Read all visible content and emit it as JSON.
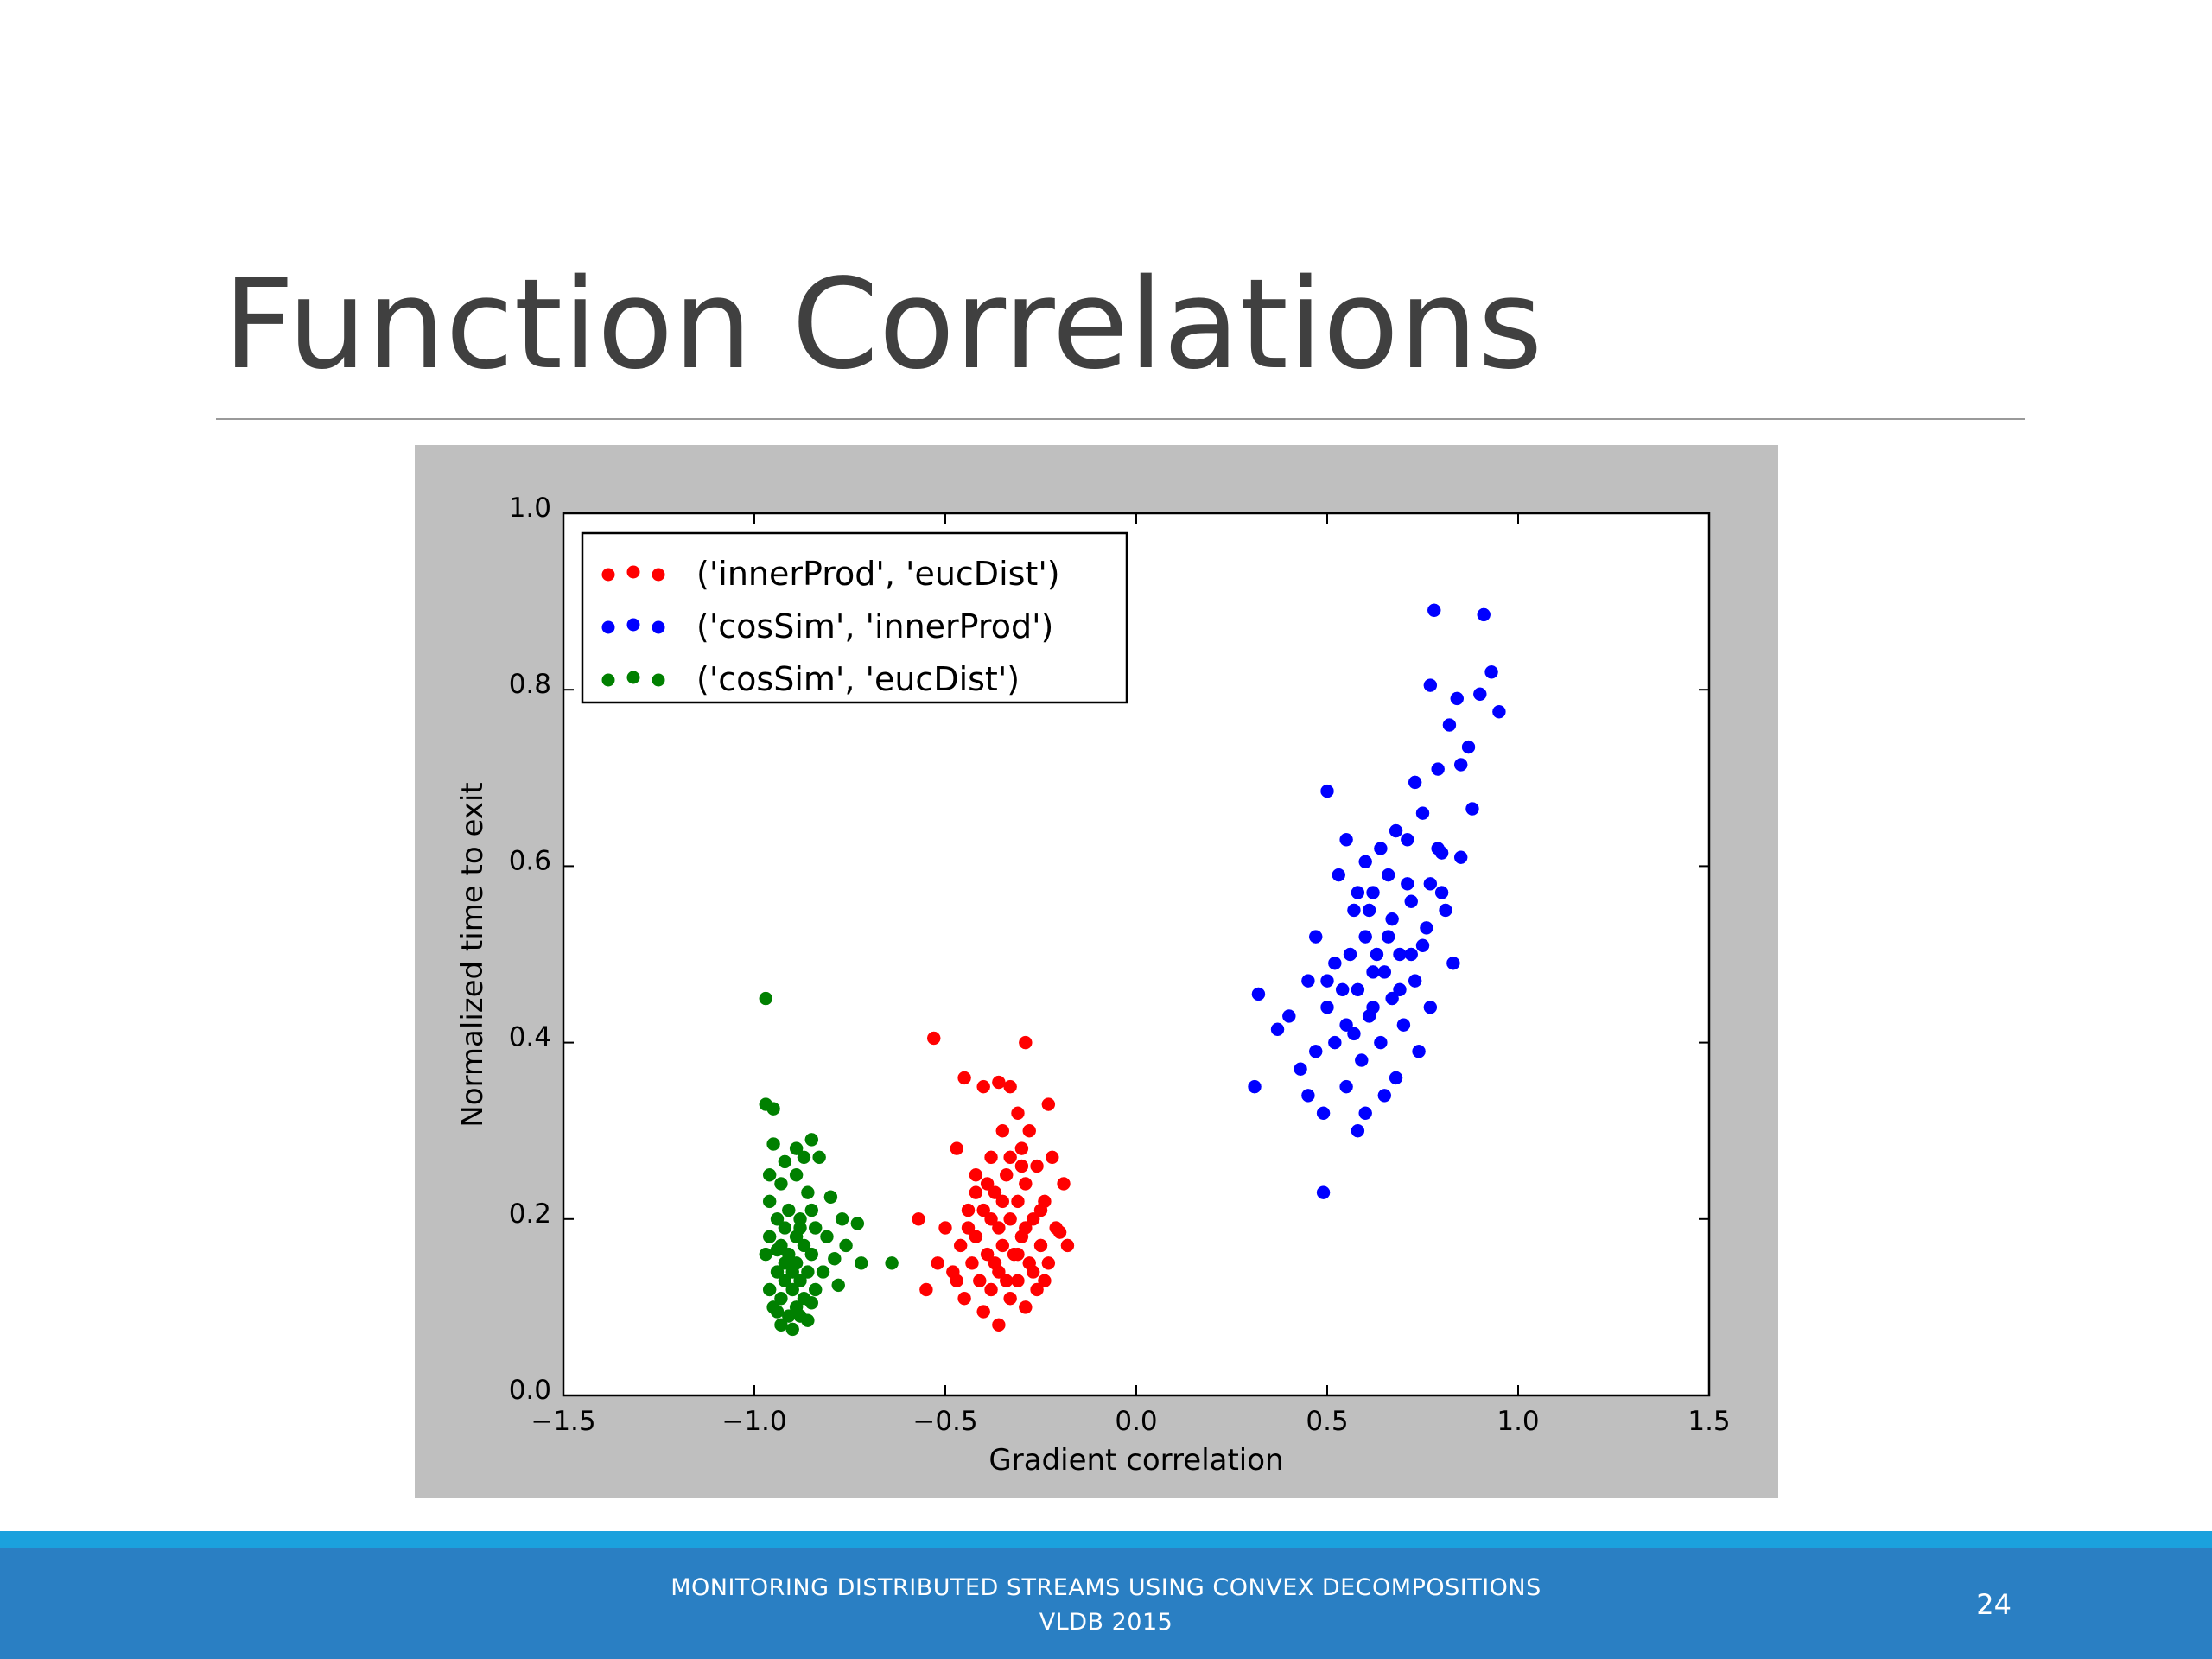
{
  "slide": {
    "title": "Function Correlations",
    "footer_line1": "MONITORING DISTRIBUTED STREAMS USING CONVEX DECOMPOSITIONS",
    "footer_line2": "VLDB 2015",
    "page_number": "24"
  },
  "chart_data": {
    "type": "scatter",
    "title": "",
    "xlabel": "Gradient correlation",
    "ylabel": "Normalized time to exit",
    "xlim": [
      -1.5,
      1.5
    ],
    "ylim": [
      0.0,
      1.0
    ],
    "xticks": [
      "−1.5",
      "−1.0",
      "−0.5",
      "0.0",
      "0.5",
      "1.0",
      "1.5"
    ],
    "yticks": [
      "0.0",
      "0.2",
      "0.4",
      "0.6",
      "0.8",
      "1.0"
    ],
    "grid": false,
    "legend_position": "top-left",
    "series": [
      {
        "name": "('innerProd', 'eucDist')",
        "color": "#ff0000",
        "points": [
          [
            -0.53,
            0.405
          ],
          [
            -0.29,
            0.4
          ],
          [
            -0.36,
            0.355
          ],
          [
            -0.4,
            0.35
          ],
          [
            -0.45,
            0.36
          ],
          [
            -0.33,
            0.35
          ],
          [
            -0.31,
            0.32
          ],
          [
            -0.23,
            0.33
          ],
          [
            -0.28,
            0.3
          ],
          [
            -0.35,
            0.3
          ],
          [
            -0.3,
            0.28
          ],
          [
            -0.22,
            0.27
          ],
          [
            -0.47,
            0.28
          ],
          [
            -0.38,
            0.27
          ],
          [
            -0.26,
            0.26
          ],
          [
            -0.42,
            0.25
          ],
          [
            -0.34,
            0.25
          ],
          [
            -0.19,
            0.24
          ],
          [
            -0.29,
            0.24
          ],
          [
            -0.37,
            0.23
          ],
          [
            -0.24,
            0.22
          ],
          [
            -0.31,
            0.22
          ],
          [
            -0.44,
            0.21
          ],
          [
            -0.4,
            0.21
          ],
          [
            -0.33,
            0.2
          ],
          [
            -0.27,
            0.2
          ],
          [
            -0.21,
            0.19
          ],
          [
            -0.36,
            0.19
          ],
          [
            -0.5,
            0.19
          ],
          [
            -0.3,
            0.18
          ],
          [
            -0.42,
            0.18
          ],
          [
            -0.25,
            0.17
          ],
          [
            -0.35,
            0.17
          ],
          [
            -0.2,
            0.185
          ],
          [
            -0.46,
            0.17
          ],
          [
            -0.32,
            0.16
          ],
          [
            -0.39,
            0.16
          ],
          [
            -0.28,
            0.15
          ],
          [
            -0.43,
            0.15
          ],
          [
            -0.23,
            0.15
          ],
          [
            -0.36,
            0.14
          ],
          [
            -0.48,
            0.14
          ],
          [
            -0.31,
            0.13
          ],
          [
            -0.41,
            0.13
          ],
          [
            -0.26,
            0.12
          ],
          [
            -0.55,
            0.12
          ],
          [
            -0.38,
            0.12
          ],
          [
            -0.45,
            0.11
          ],
          [
            -0.33,
            0.11
          ],
          [
            -0.29,
            0.1
          ],
          [
            -0.4,
            0.095
          ],
          [
            -0.36,
            0.08
          ],
          [
            -0.52,
            0.15
          ],
          [
            -0.57,
            0.2
          ],
          [
            -0.24,
            0.13
          ],
          [
            -0.18,
            0.17
          ],
          [
            -0.35,
            0.22
          ],
          [
            -0.39,
            0.24
          ],
          [
            -0.3,
            0.26
          ],
          [
            -0.27,
            0.14
          ],
          [
            -0.44,
            0.19
          ],
          [
            -0.34,
            0.13
          ],
          [
            -0.38,
            0.2
          ],
          [
            -0.31,
            0.16
          ],
          [
            -0.42,
            0.23
          ],
          [
            -0.25,
            0.21
          ],
          [
            -0.47,
            0.13
          ],
          [
            -0.33,
            0.27
          ],
          [
            -0.37,
            0.15
          ],
          [
            -0.29,
            0.19
          ]
        ]
      },
      {
        "name": "('cosSim', 'innerProd')",
        "color": "#0000ff",
        "points": [
          [
            0.78,
            0.89
          ],
          [
            0.91,
            0.885
          ],
          [
            0.93,
            0.82
          ],
          [
            0.77,
            0.805
          ],
          [
            0.84,
            0.79
          ],
          [
            0.9,
            0.795
          ],
          [
            0.95,
            0.775
          ],
          [
            0.82,
            0.76
          ],
          [
            0.87,
            0.735
          ],
          [
            0.79,
            0.71
          ],
          [
            0.73,
            0.695
          ],
          [
            0.85,
            0.715
          ],
          [
            0.5,
            0.685
          ],
          [
            0.75,
            0.66
          ],
          [
            0.88,
            0.665
          ],
          [
            0.68,
            0.64
          ],
          [
            0.71,
            0.63
          ],
          [
            0.55,
            0.63
          ],
          [
            0.64,
            0.62
          ],
          [
            0.8,
            0.615
          ],
          [
            0.6,
            0.605
          ],
          [
            0.85,
            0.61
          ],
          [
            0.66,
            0.59
          ],
          [
            0.53,
            0.59
          ],
          [
            0.77,
            0.58
          ],
          [
            0.62,
            0.57
          ],
          [
            0.72,
            0.56
          ],
          [
            0.57,
            0.55
          ],
          [
            0.81,
            0.55
          ],
          [
            0.67,
            0.54
          ],
          [
            0.47,
            0.52
          ],
          [
            0.6,
            0.52
          ],
          [
            0.75,
            0.51
          ],
          [
            0.56,
            0.5
          ],
          [
            0.69,
            0.5
          ],
          [
            0.52,
            0.49
          ],
          [
            0.83,
            0.49
          ],
          [
            0.62,
            0.48
          ],
          [
            0.45,
            0.47
          ],
          [
            0.73,
            0.47
          ],
          [
            0.58,
            0.46
          ],
          [
            0.67,
            0.45
          ],
          [
            0.32,
            0.455
          ],
          [
            0.5,
            0.44
          ],
          [
            0.77,
            0.44
          ],
          [
            0.61,
            0.43
          ],
          [
            0.4,
            0.43
          ],
          [
            0.55,
            0.42
          ],
          [
            0.7,
            0.42
          ],
          [
            0.37,
            0.415
          ],
          [
            0.64,
            0.4
          ],
          [
            0.52,
            0.4
          ],
          [
            0.47,
            0.39
          ],
          [
            0.74,
            0.39
          ],
          [
            0.59,
            0.38
          ],
          [
            0.43,
            0.37
          ],
          [
            0.68,
            0.36
          ],
          [
            0.55,
            0.35
          ],
          [
            0.31,
            0.35
          ],
          [
            0.65,
            0.34
          ],
          [
            0.45,
            0.34
          ],
          [
            0.6,
            0.32
          ],
          [
            0.49,
            0.32
          ],
          [
            0.58,
            0.3
          ],
          [
            0.49,
            0.23
          ],
          [
            0.66,
            0.52
          ],
          [
            0.71,
            0.58
          ],
          [
            0.63,
            0.5
          ],
          [
            0.58,
            0.57
          ],
          [
            0.79,
            0.62
          ],
          [
            0.54,
            0.46
          ],
          [
            0.69,
            0.46
          ],
          [
            0.61,
            0.55
          ],
          [
            0.76,
            0.53
          ],
          [
            0.57,
            0.41
          ],
          [
            0.65,
            0.48
          ],
          [
            0.72,
            0.5
          ],
          [
            0.5,
            0.47
          ],
          [
            0.62,
            0.44
          ],
          [
            0.8,
            0.57
          ]
        ]
      },
      {
        "name": "('cosSim', 'eucDist')",
        "color": "#008000",
        "points": [
          [
            -0.97,
            0.45
          ],
          [
            -0.97,
            0.33
          ],
          [
            -0.95,
            0.325
          ],
          [
            -0.85,
            0.29
          ],
          [
            -0.89,
            0.28
          ],
          [
            -0.95,
            0.285
          ],
          [
            -0.87,
            0.27
          ],
          [
            -0.92,
            0.265
          ],
          [
            -0.83,
            0.27
          ],
          [
            -0.96,
            0.25
          ],
          [
            -0.89,
            0.25
          ],
          [
            -0.93,
            0.24
          ],
          [
            -0.86,
            0.23
          ],
          [
            -0.8,
            0.225
          ],
          [
            -0.96,
            0.22
          ],
          [
            -0.91,
            0.21
          ],
          [
            -0.85,
            0.21
          ],
          [
            -0.94,
            0.2
          ],
          [
            -0.88,
            0.2
          ],
          [
            -0.77,
            0.2
          ],
          [
            -0.73,
            0.195
          ],
          [
            -0.92,
            0.19
          ],
          [
            -0.84,
            0.19
          ],
          [
            -0.96,
            0.18
          ],
          [
            -0.89,
            0.18
          ],
          [
            -0.81,
            0.18
          ],
          [
            -0.93,
            0.17
          ],
          [
            -0.87,
            0.17
          ],
          [
            -0.76,
            0.17
          ],
          [
            -0.91,
            0.16
          ],
          [
            -0.85,
            0.16
          ],
          [
            -0.97,
            0.16
          ],
          [
            -0.79,
            0.155
          ],
          [
            -0.72,
            0.15
          ],
          [
            -0.64,
            0.15
          ],
          [
            -0.89,
            0.15
          ],
          [
            -0.94,
            0.14
          ],
          [
            -0.86,
            0.14
          ],
          [
            -0.82,
            0.14
          ],
          [
            -0.92,
            0.13
          ],
          [
            -0.88,
            0.13
          ],
          [
            -0.96,
            0.12
          ],
          [
            -0.9,
            0.12
          ],
          [
            -0.84,
            0.12
          ],
          [
            -0.78,
            0.125
          ],
          [
            -0.93,
            0.11
          ],
          [
            -0.87,
            0.11
          ],
          [
            -0.95,
            0.1
          ],
          [
            -0.89,
            0.1
          ],
          [
            -0.91,
            0.09
          ],
          [
            -0.86,
            0.085
          ],
          [
            -0.93,
            0.08
          ],
          [
            -0.9,
            0.075
          ],
          [
            -0.88,
            0.09
          ],
          [
            -0.94,
            0.095
          ],
          [
            -0.85,
            0.105
          ],
          [
            -0.92,
            0.15
          ],
          [
            -0.9,
            0.14
          ],
          [
            -0.94,
            0.165
          ],
          [
            -0.88,
            0.19
          ]
        ]
      }
    ]
  }
}
